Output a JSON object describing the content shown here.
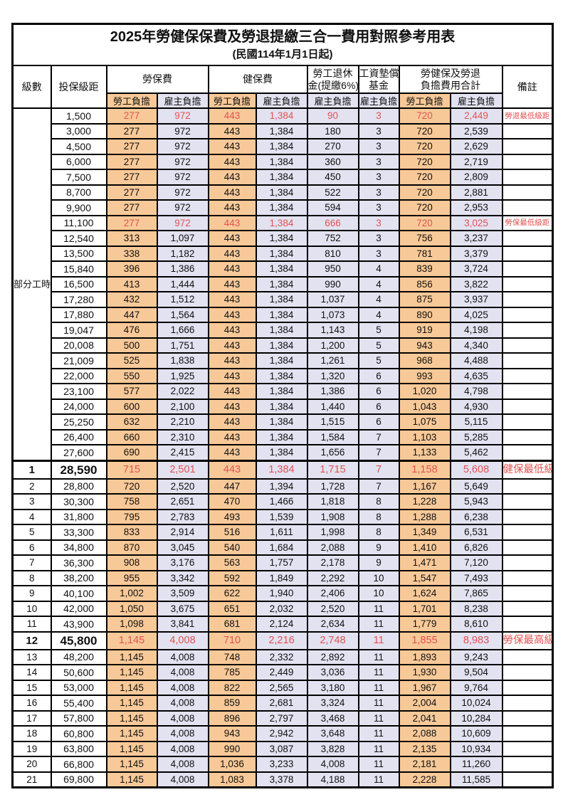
{
  "title": "2025年勞健保保費及勞退提繳三合一費用對照參考用表",
  "subtitle": "(民國114年1月1日起)",
  "columns": {
    "level": "級數",
    "bracket": "投保級距",
    "labor_group": "勞保費",
    "health_group": "健保費",
    "pension_line1": "勞工退休",
    "pension_line2": "金(提繳6%)",
    "wage_fund_line1": "工資墊償",
    "wage_fund_line2": "基金",
    "total_line1": "勞健保及勞退",
    "total_line2": "負擔費用合計",
    "remark": "備註",
    "employee": "勞工負擔",
    "employer": "雇主負擔"
  },
  "part_time_label": "部分工時",
  "part_time_rowspan": 23,
  "colors": {
    "employee_bg": "#f8c998",
    "employer_bg": "#e2e2f1",
    "highlight_red": "#e15353"
  },
  "rows": [
    {
      "level": "",
      "bracket": "1,500",
      "v": [
        "277",
        "972",
        "443",
        "1,384",
        "90",
        "3",
        "720",
        "2,449"
      ],
      "remark": "勞退最低級距",
      "red": true,
      "emph": false,
      "section_start": false
    },
    {
      "level": "",
      "bracket": "3,000",
      "v": [
        "277",
        "972",
        "443",
        "1,384",
        "180",
        "3",
        "720",
        "2,539"
      ],
      "remark": "",
      "red": false,
      "emph": false,
      "section_start": false
    },
    {
      "level": "",
      "bracket": "4,500",
      "v": [
        "277",
        "972",
        "443",
        "1,384",
        "270",
        "3",
        "720",
        "2,629"
      ],
      "remark": "",
      "red": false,
      "emph": false,
      "section_start": false
    },
    {
      "level": "",
      "bracket": "6,000",
      "v": [
        "277",
        "972",
        "443",
        "1,384",
        "360",
        "3",
        "720",
        "2,719"
      ],
      "remark": "",
      "red": false,
      "emph": false,
      "section_start": false
    },
    {
      "level": "",
      "bracket": "7,500",
      "v": [
        "277",
        "972",
        "443",
        "1,384",
        "450",
        "3",
        "720",
        "2,809"
      ],
      "remark": "",
      "red": false,
      "emph": false,
      "section_start": false
    },
    {
      "level": "",
      "bracket": "8,700",
      "v": [
        "277",
        "972",
        "443",
        "1,384",
        "522",
        "3",
        "720",
        "2,881"
      ],
      "remark": "",
      "red": false,
      "emph": false,
      "section_start": false
    },
    {
      "level": "",
      "bracket": "9,900",
      "v": [
        "277",
        "972",
        "443",
        "1,384",
        "594",
        "3",
        "720",
        "2,953"
      ],
      "remark": "",
      "red": false,
      "emph": false,
      "section_start": false
    },
    {
      "level": "",
      "bracket": "11,100",
      "v": [
        "277",
        "972",
        "443",
        "1,384",
        "666",
        "3",
        "720",
        "3,025"
      ],
      "remark": "勞保最低級距",
      "red": true,
      "emph": false,
      "section_start": false
    },
    {
      "level": "",
      "bracket": "12,540",
      "v": [
        "313",
        "1,097",
        "443",
        "1,384",
        "752",
        "3",
        "756",
        "3,237"
      ],
      "remark": "",
      "red": false,
      "emph": false,
      "section_start": false
    },
    {
      "level": "",
      "bracket": "13,500",
      "v": [
        "338",
        "1,182",
        "443",
        "1,384",
        "810",
        "3",
        "781",
        "3,379"
      ],
      "remark": "",
      "red": false,
      "emph": false,
      "section_start": false
    },
    {
      "level": "",
      "bracket": "15,840",
      "v": [
        "396",
        "1,386",
        "443",
        "1,384",
        "950",
        "4",
        "839",
        "3,724"
      ],
      "remark": "",
      "red": false,
      "emph": false,
      "section_start": false
    },
    {
      "level": "",
      "bracket": "16,500",
      "v": [
        "413",
        "1,444",
        "443",
        "1,384",
        "990",
        "4",
        "856",
        "3,822"
      ],
      "remark": "",
      "red": false,
      "emph": false,
      "section_start": false
    },
    {
      "level": "",
      "bracket": "17,280",
      "v": [
        "432",
        "1,512",
        "443",
        "1,384",
        "1,037",
        "4",
        "875",
        "3,937"
      ],
      "remark": "",
      "red": false,
      "emph": false,
      "section_start": false
    },
    {
      "level": "",
      "bracket": "17,880",
      "v": [
        "447",
        "1,564",
        "443",
        "1,384",
        "1,073",
        "4",
        "890",
        "4,025"
      ],
      "remark": "",
      "red": false,
      "emph": false,
      "section_start": false
    },
    {
      "level": "",
      "bracket": "19,047",
      "v": [
        "476",
        "1,666",
        "443",
        "1,384",
        "1,143",
        "5",
        "919",
        "4,198"
      ],
      "remark": "",
      "red": false,
      "emph": false,
      "section_start": false
    },
    {
      "level": "",
      "bracket": "20,008",
      "v": [
        "500",
        "1,751",
        "443",
        "1,384",
        "1,200",
        "5",
        "943",
        "4,340"
      ],
      "remark": "",
      "red": false,
      "emph": false,
      "section_start": false
    },
    {
      "level": "",
      "bracket": "21,009",
      "v": [
        "525",
        "1,838",
        "443",
        "1,384",
        "1,261",
        "5",
        "968",
        "4,488"
      ],
      "remark": "",
      "red": false,
      "emph": false,
      "section_start": false
    },
    {
      "level": "",
      "bracket": "22,000",
      "v": [
        "550",
        "1,925",
        "443",
        "1,384",
        "1,320",
        "6",
        "993",
        "4,635"
      ],
      "remark": "",
      "red": false,
      "emph": false,
      "section_start": false
    },
    {
      "level": "",
      "bracket": "23,100",
      "v": [
        "577",
        "2,022",
        "443",
        "1,384",
        "1,386",
        "6",
        "1,020",
        "4,798"
      ],
      "remark": "",
      "red": false,
      "emph": false,
      "section_start": false
    },
    {
      "level": "",
      "bracket": "24,000",
      "v": [
        "600",
        "2,100",
        "443",
        "1,384",
        "1,440",
        "6",
        "1,043",
        "4,930"
      ],
      "remark": "",
      "red": false,
      "emph": false,
      "section_start": false
    },
    {
      "level": "",
      "bracket": "25,250",
      "v": [
        "632",
        "2,210",
        "443",
        "1,384",
        "1,515",
        "6",
        "1,075",
        "5,115"
      ],
      "remark": "",
      "red": false,
      "emph": false,
      "section_start": false
    },
    {
      "level": "",
      "bracket": "26,400",
      "v": [
        "660",
        "2,310",
        "443",
        "1,384",
        "1,584",
        "7",
        "1,103",
        "5,285"
      ],
      "remark": "",
      "red": false,
      "emph": false,
      "section_start": false
    },
    {
      "level": "",
      "bracket": "27,600",
      "v": [
        "690",
        "2,415",
        "443",
        "1,384",
        "1,656",
        "7",
        "1,133",
        "5,462"
      ],
      "remark": "",
      "red": false,
      "emph": false,
      "section_start": false
    },
    {
      "level": "1",
      "bracket": "28,590",
      "v": [
        "715",
        "2,501",
        "443",
        "1,384",
        "1,715",
        "7",
        "1,158",
        "5,608"
      ],
      "remark": "健保最低級距",
      "red": true,
      "emph": true,
      "section_start": true
    },
    {
      "level": "2",
      "bracket": "28,800",
      "v": [
        "720",
        "2,520",
        "447",
        "1,394",
        "1,728",
        "7",
        "1,167",
        "5,649"
      ],
      "remark": "",
      "red": false,
      "emph": false,
      "section_start": false
    },
    {
      "level": "3",
      "bracket": "30,300",
      "v": [
        "758",
        "2,651",
        "470",
        "1,466",
        "1,818",
        "8",
        "1,228",
        "5,943"
      ],
      "remark": "",
      "red": false,
      "emph": false,
      "section_start": false
    },
    {
      "level": "4",
      "bracket": "31,800",
      "v": [
        "795",
        "2,783",
        "493",
        "1,539",
        "1,908",
        "8",
        "1,288",
        "6,238"
      ],
      "remark": "",
      "red": false,
      "emph": false,
      "section_start": false
    },
    {
      "level": "5",
      "bracket": "33,300",
      "v": [
        "833",
        "2,914",
        "516",
        "1,611",
        "1,998",
        "8",
        "1,349",
        "6,531"
      ],
      "remark": "",
      "red": false,
      "emph": false,
      "section_start": false
    },
    {
      "level": "6",
      "bracket": "34,800",
      "v": [
        "870",
        "3,045",
        "540",
        "1,684",
        "2,088",
        "9",
        "1,410",
        "6,826"
      ],
      "remark": "",
      "red": false,
      "emph": false,
      "section_start": false
    },
    {
      "level": "7",
      "bracket": "36,300",
      "v": [
        "908",
        "3,176",
        "563",
        "1,757",
        "2,178",
        "9",
        "1,471",
        "7,120"
      ],
      "remark": "",
      "red": false,
      "emph": false,
      "section_start": false
    },
    {
      "level": "8",
      "bracket": "38,200",
      "v": [
        "955",
        "3,342",
        "592",
        "1,849",
        "2,292",
        "10",
        "1,547",
        "7,493"
      ],
      "remark": "",
      "red": false,
      "emph": false,
      "section_start": false
    },
    {
      "level": "9",
      "bracket": "40,100",
      "v": [
        "1,002",
        "3,509",
        "622",
        "1,940",
        "2,406",
        "10",
        "1,624",
        "7,865"
      ],
      "remark": "",
      "red": false,
      "emph": false,
      "section_start": false
    },
    {
      "level": "10",
      "bracket": "42,000",
      "v": [
        "1,050",
        "3,675",
        "651",
        "2,032",
        "2,520",
        "11",
        "1,701",
        "8,238"
      ],
      "remark": "",
      "red": false,
      "emph": false,
      "section_start": false
    },
    {
      "level": "11",
      "bracket": "43,900",
      "v": [
        "1,098",
        "3,841",
        "681",
        "2,124",
        "2,634",
        "11",
        "1,779",
        "8,610"
      ],
      "remark": "",
      "red": false,
      "emph": false,
      "section_start": false
    },
    {
      "level": "12",
      "bracket": "45,800",
      "v": [
        "1,145",
        "4,008",
        "710",
        "2,216",
        "2,748",
        "11",
        "1,855",
        "8,983"
      ],
      "remark": "勞保最高級距",
      "red": true,
      "emph": true,
      "section_start": false
    },
    {
      "level": "13",
      "bracket": "48,200",
      "v": [
        "1,145",
        "4,008",
        "748",
        "2,332",
        "2,892",
        "11",
        "1,893",
        "9,243"
      ],
      "remark": "",
      "red": false,
      "emph": false,
      "section_start": false
    },
    {
      "level": "14",
      "bracket": "50,600",
      "v": [
        "1,145",
        "4,008",
        "785",
        "2,449",
        "3,036",
        "11",
        "1,930",
        "9,504"
      ],
      "remark": "",
      "red": false,
      "emph": false,
      "section_start": false
    },
    {
      "level": "15",
      "bracket": "53,000",
      "v": [
        "1,145",
        "4,008",
        "822",
        "2,565",
        "3,180",
        "11",
        "1,967",
        "9,764"
      ],
      "remark": "",
      "red": false,
      "emph": false,
      "section_start": false
    },
    {
      "level": "16",
      "bracket": "55,400",
      "v": [
        "1,145",
        "4,008",
        "859",
        "2,681",
        "3,324",
        "11",
        "2,004",
        "10,024"
      ],
      "remark": "",
      "red": false,
      "emph": false,
      "section_start": false
    },
    {
      "level": "17",
      "bracket": "57,800",
      "v": [
        "1,145",
        "4,008",
        "896",
        "2,797",
        "3,468",
        "11",
        "2,041",
        "10,284"
      ],
      "remark": "",
      "red": false,
      "emph": false,
      "section_start": false
    },
    {
      "level": "18",
      "bracket": "60,800",
      "v": [
        "1,145",
        "4,008",
        "943",
        "2,942",
        "3,648",
        "11",
        "2,088",
        "10,609"
      ],
      "remark": "",
      "red": false,
      "emph": false,
      "section_start": false
    },
    {
      "level": "19",
      "bracket": "63,800",
      "v": [
        "1,145",
        "4,008",
        "990",
        "3,087",
        "3,828",
        "11",
        "2,135",
        "10,934"
      ],
      "remark": "",
      "red": false,
      "emph": false,
      "section_start": false
    },
    {
      "level": "20",
      "bracket": "66,800",
      "v": [
        "1,145",
        "4,008",
        "1,036",
        "3,233",
        "4,008",
        "11",
        "2,181",
        "11,260"
      ],
      "remark": "",
      "red": false,
      "emph": false,
      "section_start": false
    },
    {
      "level": "21",
      "bracket": "69,800",
      "v": [
        "1,145",
        "4,008",
        "1,083",
        "3,378",
        "4,188",
        "11",
        "2,228",
        "11,585"
      ],
      "remark": "",
      "red": false,
      "emph": false,
      "section_start": false
    }
  ]
}
